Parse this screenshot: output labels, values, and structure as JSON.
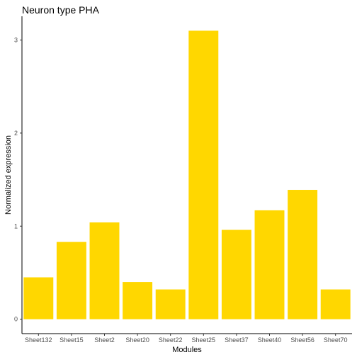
{
  "chart_data": {
    "type": "bar",
    "title": "Neuron type PHA",
    "xlabel": "Modules",
    "ylabel": "Normalized expression",
    "categories": [
      "Sheet132",
      "Sheet15",
      "Sheet2",
      "Sheet20",
      "Sheet22",
      "Sheet25",
      "Sheet37",
      "Sheet40",
      "Sheet56",
      "Sheet70"
    ],
    "values": [
      0.45,
      0.83,
      1.04,
      0.4,
      0.32,
      3.1,
      0.96,
      1.17,
      1.39,
      0.32
    ],
    "yticks": [
      0,
      1,
      2,
      3
    ],
    "ylim": [
      -0.155,
      3.255
    ],
    "grid": false,
    "bar_color": "#FFD700"
  }
}
